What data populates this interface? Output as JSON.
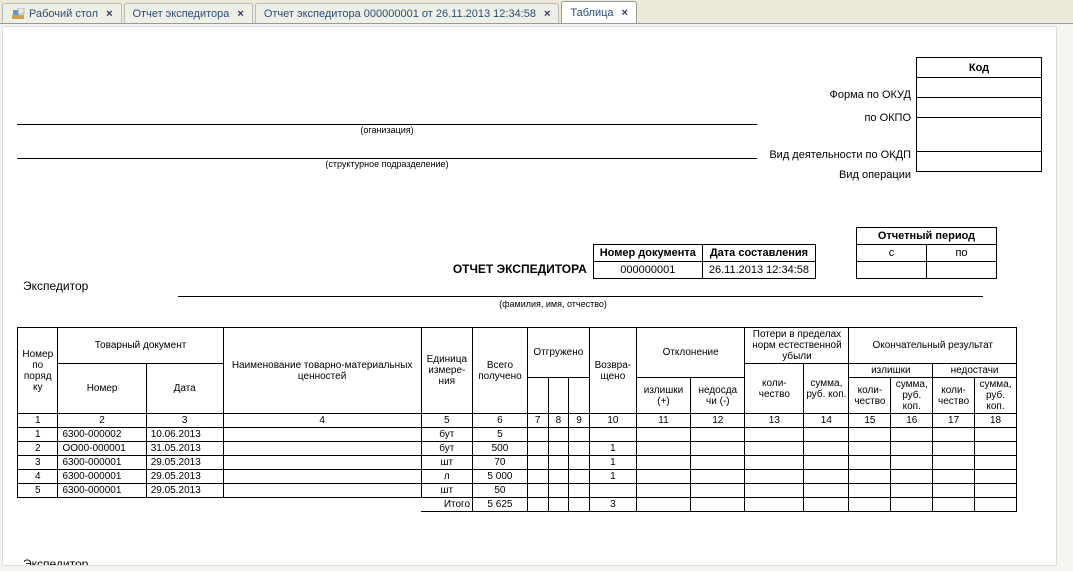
{
  "tabs": [
    {
      "label": "Рабочий стол",
      "close": true,
      "icon": true
    },
    {
      "label": "Отчет экспедитора",
      "close": true
    },
    {
      "label": "Отчет экспедитора 000000001 от 26.11.2013 12:34:58",
      "close": true
    },
    {
      "label": "Таблица",
      "close": true,
      "active": true
    }
  ],
  "code_header": "Код",
  "code_labels": {
    "okud": "Форма по ОКУД",
    "okpo": "по ОКПО",
    "okdp": "Вид деятельности по ОКДП",
    "op": "Вид операции"
  },
  "org_caption": "(оганизация)",
  "subdiv_caption": "(структурное подразделение)",
  "title": "ОТЧЕТ ЭКСПЕДИТОРА",
  "doc_meta": {
    "num_hdr": "Номер документа",
    "date_hdr": "Дата составления",
    "num": "000000001",
    "date": "26.11.2013 12:34:58"
  },
  "period": {
    "hdr": "Отчетный период",
    "from": "с",
    "to": "по"
  },
  "expeditor_label": "Экспедитор",
  "fio_caption": "(фамилия, имя, отчество)",
  "table": {
    "headers": {
      "n": "Номер по поряд ку",
      "doc": "Товарный документ",
      "docnum": "Номер",
      "docdate": "Дата",
      "name": "Наименование товарно-материальных ценностей",
      "unit": "Единица измере-ния",
      "total": "Всего получено",
      "shipped": "Отгружено",
      "returned": "Возвра-щено",
      "deviation": "Отклонение",
      "dev_plus": "излишки (+)",
      "dev_minus": "недосда чи (-)",
      "loss": "Потери в пределах норм естественной убыли",
      "loss_qty": "коли-чество",
      "loss_sum": "сумма, руб. коп.",
      "final": "Окончательный результат",
      "fin_plus": "излишки",
      "fin_minus": "недостачи",
      "fin_qty": "коли-чество",
      "fin_sum": "сумма, руб. коп."
    },
    "colnums": [
      "1",
      "2",
      "3",
      "4",
      "5",
      "6",
      "7",
      "8",
      "9",
      "10",
      "11",
      "12",
      "13",
      "14",
      "15",
      "16",
      "17",
      "18"
    ],
    "rows": [
      {
        "n": "1",
        "docnum": "6300-000002",
        "date": "10.06.2013",
        "name": "",
        "unit": "бут",
        "total": "5",
        "ret": ""
      },
      {
        "n": "2",
        "docnum": "ОО00-000001",
        "date": "31.05.2013",
        "name": "",
        "unit": "бут",
        "total": "500",
        "ret": "1"
      },
      {
        "n": "3",
        "docnum": "6300-000001",
        "date": "29.05.2013",
        "name": "",
        "unit": "шт",
        "total": "70",
        "ret": "1"
      },
      {
        "n": "4",
        "docnum": "6300-000001",
        "date": "29.05.2013",
        "name": "",
        "unit": "л",
        "total": "5 000",
        "ret": "1"
      },
      {
        "n": "5",
        "docnum": "6300-000001",
        "date": "29.05.2013",
        "name": "",
        "unit": "шт",
        "total": "50",
        "ret": ""
      }
    ],
    "totals": {
      "label": "Итого",
      "total": "5 625",
      "ret": "3"
    }
  },
  "footer_expeditor": "Экспедитор"
}
